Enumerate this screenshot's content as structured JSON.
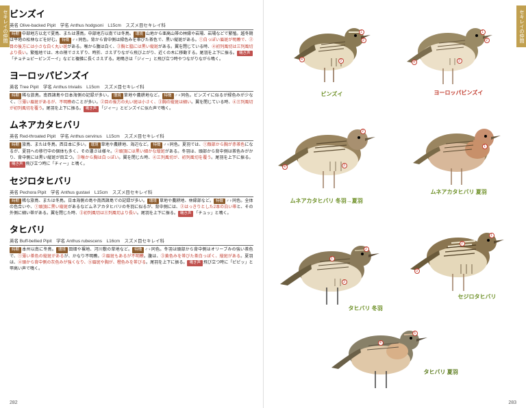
{
  "tab_label": "セキレイの仲間",
  "page_left_num": "282",
  "page_right_num": "283",
  "species": [
    {
      "title": "ビンズイ",
      "en": "Olive-backed Pipit",
      "sci": "Anthus hodgsoni",
      "size": "L15cm",
      "family": "スズメ目セキレイ科",
      "desc_parts": [
        {
          "tag": "時期",
          "t": "中部地方以北で夏鳥、または漂鳥。中部地方以南では冬鳥。"
        },
        {
          "tag": "環境",
          "t": "山地から亜高山帯の林縁や岩場、岩場などで繁殖。越冬期は平地の松林などを好む。"
        },
        {
          "tag": "特徴",
          "t": "♂♀同色。背から背中側は緑色みを帯びた茶色で、黒い縦斑がある。"
        },
        {
          "red": "①白っぽい眉斑が明瞭で、②目の後方には小さな白く丸い斑"
        },
        {
          "t": "がある。喉から腹は白く、"
        },
        {
          "red": "③胸と脇には黒い縦斑"
        },
        {
          "t": "がある。翼を閉じている時、"
        },
        {
          "red": "④初列風切は三列風切より長い"
        },
        {
          "t": "。繁殖地では、木の梢でさえずり、時折、さえずりながら飛び上がり、近くの木に移動する。尾羽を上下に振る。"
        },
        {
          "tag": "鳴き声",
          "cls": "tag-red",
          "t": "「チョチョピーピンズーイ」などと複雑に長くさえずる。地鳴きは「ジィー」と飛び立つ時やつながりながら鳴く。"
        }
      ]
    },
    {
      "title": "ヨーロッパビンズイ",
      "en": "Tree Pipit",
      "sci": "Anthus trivialis",
      "size": "L15cm",
      "family": "スズメ目セキレイ科",
      "desc_parts": [
        {
          "tag": "時期",
          "t": "稀な旅鳥。南西諸島や日本海側の記録が多い。"
        },
        {
          "tag": "環境",
          "t": "草地や農耕地など。"
        },
        {
          "tag": "特徴",
          "t": "♂♀同色。ビンズイに似るが緑色みが少なく、"
        },
        {
          "red": "①薄い眉斑があるが、不明瞭"
        },
        {
          "t": "のことが多い。"
        },
        {
          "red": "②目の後方の丸い斑は小さく、③胸の縦斑は細い"
        },
        {
          "t": "。翼を閉じている時、"
        },
        {
          "red": "④三列風切が初列風切を覆う"
        },
        {
          "t": "。尾羽を上下に振る。"
        },
        {
          "tag": "鳴き声",
          "cls": "tag-red",
          "t": "「ジィー」とビンズイに似た声で鳴く。"
        }
      ]
    },
    {
      "title": "ムネアカタヒバリ",
      "en": "Red-throated Pipit",
      "sci": "Anthus cervinus",
      "size": "L15cm",
      "family": "スズメ目セキレイ科",
      "desc_parts": [
        {
          "tag": "時期",
          "t": "旅鳥、または冬鳥。西日本に多い。"
        },
        {
          "tag": "環境",
          "t": "草地や農耕地、海辺など。"
        },
        {
          "tag": "特徴",
          "t": "♂♀同色。夏羽では、"
        },
        {
          "red": "①顔部から胸が赤茶色"
        },
        {
          "t": "になるが、夏羽への移行中の個体も多く、その濃さは様々。"
        },
        {
          "red": "②頭頂には黒い細かな縦斑"
        },
        {
          "t": "がある。冬羽は、頭部から背中側は茶色みがかり、背中側には黒い縦斑が目立つ。"
        },
        {
          "red": "③喉から胸は白っぽい"
        },
        {
          "t": "。翼を閉じた時、"
        },
        {
          "red": "④三列風切が、初列風切を覆う"
        },
        {
          "t": "。尾羽を上下に振る。"
        },
        {
          "tag": "鳴き声",
          "cls": "tag-red",
          "t": "飛び立つ時に「チィー」と鳴く。"
        }
      ]
    },
    {
      "title": "セジロタヒバリ",
      "en": "Pechora Pipit",
      "sci": "Anthus gustavi",
      "size": "L15cm",
      "family": "スズメ目セキレイ科",
      "desc_parts": [
        {
          "tag": "時期",
          "t": "稀な旅鳥、または冬鳥。日本海側の島や南西諸島での記録が多い。"
        },
        {
          "tag": "環境",
          "t": "草地や農耕地、林縁部など。"
        },
        {
          "tag": "特徴",
          "t": "♂♀同色。全体の色合いや、"
        },
        {
          "red": "①頭頂に黒い縦斑"
        },
        {
          "t": "があるなどムネアカタヒバリの冬羽に似るが、背中側には、"
        },
        {
          "red": "②はっきりとした2本の白い帯"
        },
        {
          "t": "と、その外側に細い帯がある。翼を閉じた時、"
        },
        {
          "red": "③初列風切は三列風切より長い"
        },
        {
          "t": "。尾羽を上下に振る。"
        },
        {
          "tag": "鳴き声",
          "cls": "tag-red",
          "t": "「チュッ」と鳴く。"
        }
      ]
    },
    {
      "title": "タヒバリ",
      "en": "Buff-bellied Pipit",
      "sci": "Anthus rubescens",
      "size": "L16cm",
      "family": "スズメ目セキレイ科",
      "desc_parts": [
        {
          "tag": "時期",
          "t": "本州以南に冬鳥。"
        },
        {
          "tag": "環境",
          "t": "田畑や裸地、河川敷の草地など。"
        },
        {
          "tag": "特徴",
          "t": "♂♀同色。冬羽は頭部から背中側はオリーブみの強い茶色で、"
        },
        {
          "red": "①薄い茶色の縦斑がある"
        },
        {
          "t": "が、かなり不明瞭。"
        },
        {
          "red": "②眉斑もあるが不明瞭"
        },
        {
          "t": "。腹は、"
        },
        {
          "red": "③黄色みを帯びた茶白っぽく、縦斑がある"
        },
        {
          "t": "。夏羽は、"
        },
        {
          "red": "④頭から背中側の灰色みが強くなり、⑤眉斑や胸が、橙色みを帯びる"
        },
        {
          "t": "。尾羽を上下に振る。"
        },
        {
          "tag": "鳴き声",
          "cls": "tag-red",
          "t": "飛び立つ時に「ピピッ」と甲高い声で鳴く。"
        }
      ]
    }
  ],
  "bird_labels": {
    "binzui": "ビンズイ",
    "europe": "ヨーロッパビンズイ",
    "muneaka_w": "ムネアカタヒバリ 冬羽→夏羽",
    "muneaka_s": "ムネアカタヒバリ 夏羽",
    "sejiro": "セジロタヒバリ",
    "tahibari_w": "タヒバリ 冬羽",
    "tahibari_s": "タヒバリ 夏羽"
  }
}
